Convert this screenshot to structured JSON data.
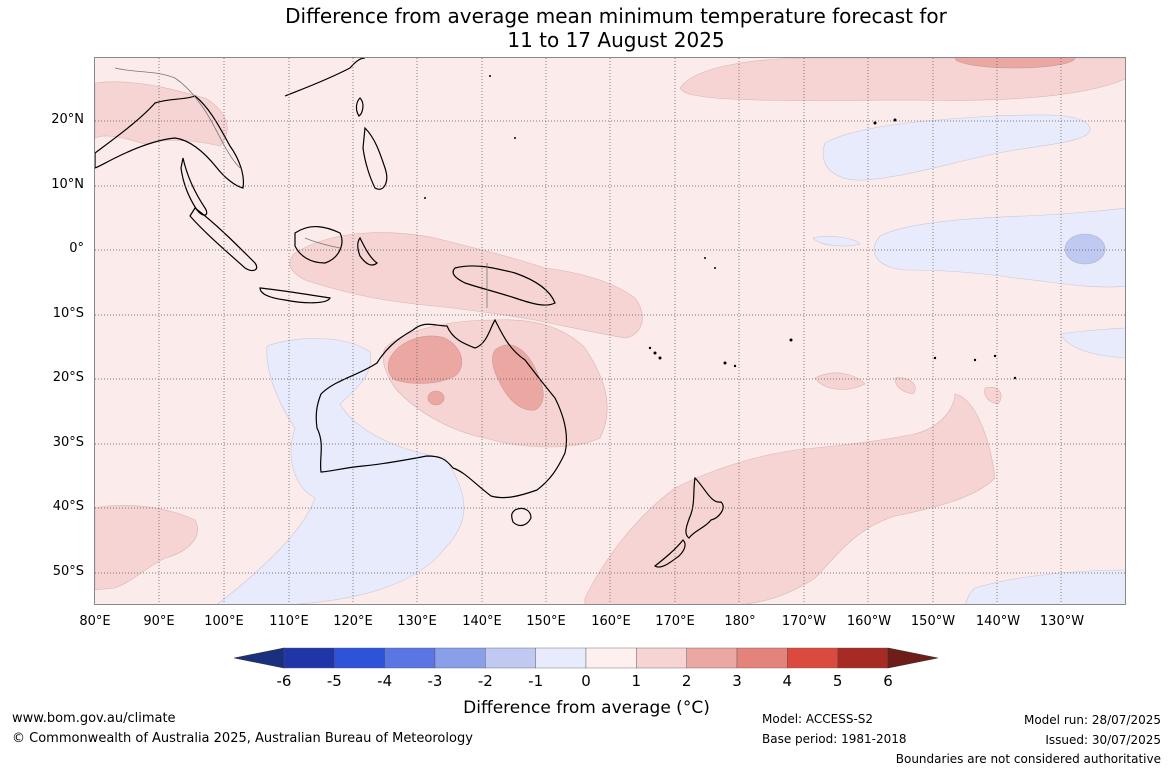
{
  "title_line1": "Difference from average mean minimum temperature forecast for",
  "title_line2": "11 to 17 August 2025",
  "lat_labels": [
    "20°N",
    "10°N",
    "0°",
    "10°S",
    "20°S",
    "30°S",
    "40°S",
    "50°S"
  ],
  "lon_labels": [
    "80°E",
    "90°E",
    "100°E",
    "110°E",
    "120°E",
    "130°E",
    "140°E",
    "150°E",
    "160°E",
    "170°E",
    "180°",
    "170°W",
    "160°W",
    "150°W",
    "140°W",
    "130°W"
  ],
  "colorbar": {
    "title": "Difference from average (",
    "title_unit": "°C",
    "title_close": ")",
    "ticks": [
      "-6",
      "-5",
      "-4",
      "-3",
      "-2",
      "-1",
      "0",
      "1",
      "2",
      "3",
      "4",
      "5",
      "6"
    ],
    "colors": [
      "#2035a8",
      "#2e52d8",
      "#5a76e4",
      "#8a9fe9",
      "#c0c9f2",
      "#e8ebfc",
      "#fdf0ee",
      "#f5d4d3",
      "#eba7a2",
      "#e4837b",
      "#da4a3e",
      "#a82a24"
    ],
    "low_extend_color": "#1a2f7e",
    "high_extend_color": "#6e1d18"
  },
  "footer": {
    "website": "www.bom.gov.au/climate",
    "copyright": "© Commonwealth of Australia 2025, Australian Bureau of Meteorology",
    "model": "Model: ACCESS-S2",
    "base_period": "Base period: 1981-2018",
    "model_run": "Model run: 28/07/2025",
    "issued": "Issued: 30/07/2025",
    "boundaries": "Boundaries are not considered authoritative"
  },
  "map": {
    "background_color": "#fbebea",
    "gridlines": "dotted",
    "lon_range": [
      "80°E",
      "130°W"
    ],
    "lat_range": [
      "55°S",
      "30°N"
    ]
  }
}
